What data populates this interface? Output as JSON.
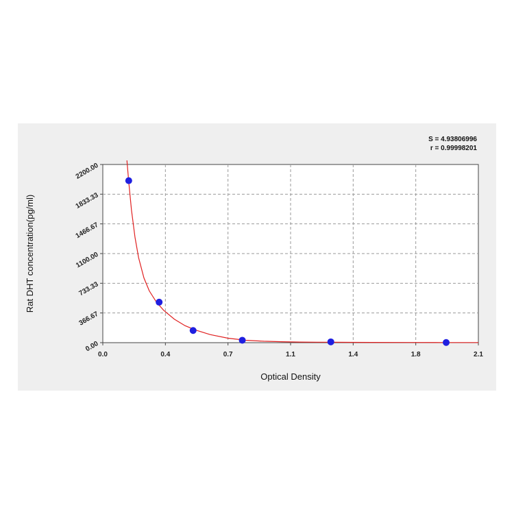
{
  "chart_data": {
    "type": "scatter",
    "title": "",
    "xlabel": "Optical Density",
    "ylabel": "Rat DHT concentration(pg/ml)",
    "xlim": [
      0.0,
      2.1
    ],
    "ylim": [
      0.0,
      2200.0
    ],
    "x_ticks": [
      "0.0",
      "0.4",
      "0.7",
      "1.1",
      "1.4",
      "1.8",
      "2.1"
    ],
    "x_tick_values": [
      0.0,
      0.35,
      0.7,
      1.05,
      1.4,
      1.75,
      2.1
    ],
    "y_ticks": [
      "0.00",
      "366.67",
      "733.33",
      "1100.00",
      "1466.67",
      "1833.33",
      "2200.00"
    ],
    "y_tick_values": [
      0.0,
      366.67,
      733.33,
      1100.0,
      1466.67,
      1833.33,
      2200.0
    ],
    "grid": true,
    "annotations": [
      "S = 4.93806996",
      "r = 0.99998201"
    ],
    "series": [
      {
        "type": "scatter",
        "color": "#1f1fe0",
        "x": [
          0.145,
          0.315,
          0.505,
          0.78,
          1.275,
          1.92
        ],
        "y": [
          2000,
          500,
          150,
          30,
          10,
          2
        ]
      },
      {
        "type": "line",
        "color": "#e02020",
        "x": [
          0.135,
          0.145,
          0.16,
          0.18,
          0.2,
          0.23,
          0.26,
          0.3,
          0.34,
          0.4,
          0.46,
          0.52,
          0.6,
          0.7,
          0.8,
          0.9,
          1.0,
          1.1,
          1.2,
          1.3,
          1.5,
          1.7,
          1.9,
          2.1
        ],
        "y": [
          2250,
          1990,
          1640,
          1300,
          1050,
          800,
          640,
          500,
          400,
          290,
          210,
          155,
          100,
          55,
          30,
          18,
          12,
          8,
          6,
          5,
          3.5,
          2.5,
          2,
          1.5
        ]
      }
    ]
  }
}
